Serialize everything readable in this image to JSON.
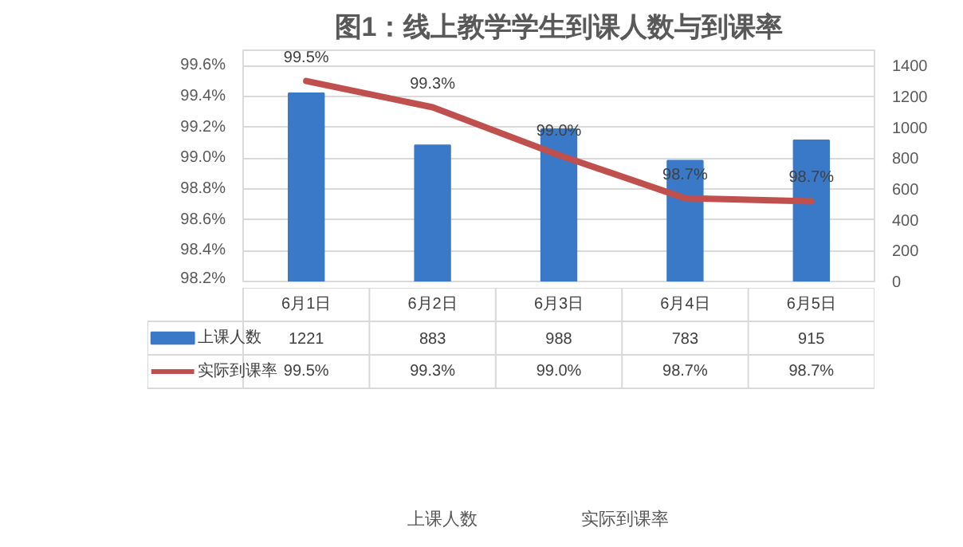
{
  "chart_data": {
    "type": "bar",
    "title": "图1：线上教学学生到课人数与到课率",
    "categories": [
      "6月1日",
      "6月2日",
      "6月3日",
      "6月4日",
      "6月5日"
    ],
    "series": [
      {
        "name": "上课人数",
        "axis": "y2",
        "color": "#3a78c8",
        "values": [
          1221,
          883,
          988,
          783,
          915
        ],
        "value_labels": [
          "1221",
          "883",
          "988",
          "783",
          "915"
        ]
      },
      {
        "name": "实际到课率",
        "type": "line",
        "color": "#c0504d",
        "values": [
          99.5,
          99.33,
          99.02,
          98.74,
          98.72
        ],
        "value_labels": [
          "99.5%",
          "99.3%",
          "99.0%",
          "98.7%",
          "98.7%"
        ]
      }
    ],
    "ylim": [
      98.2,
      99.7
    ],
    "yticks": [
      {
        "value": 98.2,
        "label": "98.2%"
      },
      {
        "value": 98.4,
        "label": "98.4%"
      },
      {
        "value": 98.6,
        "label": "98.6%"
      },
      {
        "value": 98.8,
        "label": "98.8%"
      },
      {
        "value": 99.0,
        "label": "99.0%"
      },
      {
        "value": 99.2,
        "label": "99.2%"
      },
      {
        "value": 99.4,
        "label": "99.4%"
      },
      {
        "value": 99.6,
        "label": "99.6%"
      }
    ],
    "y2lim": [
      0,
      1500
    ],
    "y2ticks": [
      0,
      200,
      400,
      600,
      800,
      1000,
      1200,
      1400
    ],
    "grid": "y",
    "legend": "bottom",
    "line_style": "solid",
    "marker": "none"
  }
}
